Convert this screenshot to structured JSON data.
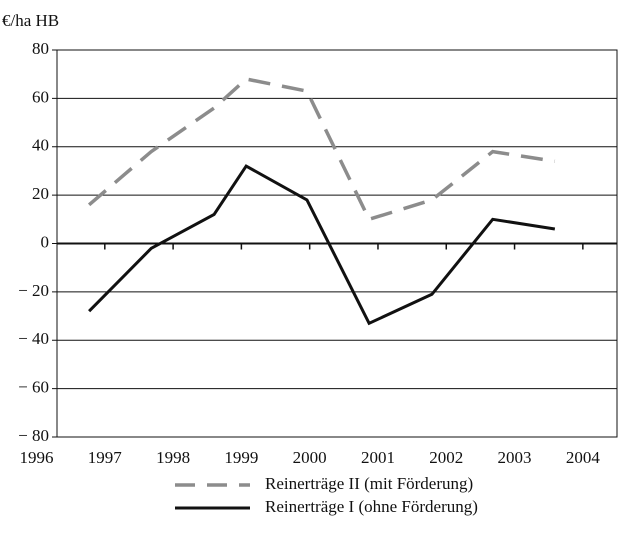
{
  "chart_data": {
    "type": "line",
    "y_label": "€/ha HB",
    "xlim": [
      1996.3,
      2004.5
    ],
    "xticks": [
      1996,
      1997,
      1998,
      1999,
      2000,
      2001,
      2002,
      2003,
      2004
    ],
    "ylim": [
      -80,
      80
    ],
    "yticks": [
      {
        "value": -80,
        "label": "− 80"
      },
      {
        "value": -60,
        "label": "− 60"
      },
      {
        "value": -40,
        "label": "− 40"
      },
      {
        "value": -20,
        "label": "− 20"
      },
      0,
      20,
      40,
      60,
      80
    ],
    "grid": true,
    "legend": "bottom",
    "series": [
      {
        "name": "Reinerträge II (mit Förderung)",
        "color": "#8c8c8c",
        "dashed": true,
        "x": [
          1996.77,
          1997.68,
          1998.6,
          1999.07,
          1999.96,
          2000.87,
          2001.79,
          2002.68,
          2003.59
        ],
        "values": [
          16,
          38,
          56,
          68,
          63,
          10,
          18,
          38,
          34
        ]
      },
      {
        "name": "Reinerträge I (ohne Förderung)",
        "color": "#111111",
        "dashed": false,
        "x": [
          1996.77,
          1997.68,
          1998.6,
          1999.07,
          1999.96,
          2000.87,
          2001.79,
          2002.68,
          2003.59
        ],
        "values": [
          -28,
          -2,
          12,
          32,
          18,
          -33,
          -21,
          10,
          6
        ]
      }
    ]
  }
}
